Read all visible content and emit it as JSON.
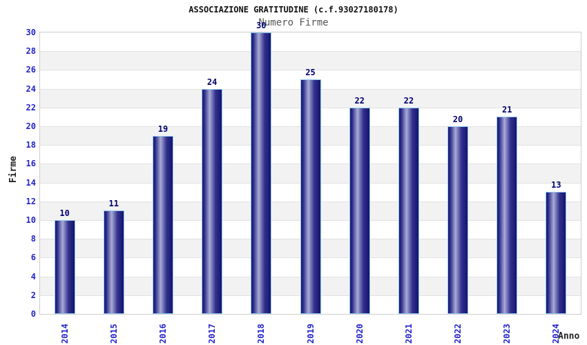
{
  "chart_data": {
    "type": "bar",
    "title": "ASSOCIAZIONE GRATITUDINE (c.f.93027180178)",
    "subtitle": "Numero Firme",
    "xlabel": "Anno",
    "ylabel": "Firme",
    "categories": [
      "2014",
      "2015",
      "2016",
      "2017",
      "2018",
      "2019",
      "2020",
      "2021",
      "2022",
      "2023",
      "2024"
    ],
    "values": [
      10,
      11,
      19,
      24,
      30,
      25,
      22,
      22,
      20,
      21,
      13
    ],
    "ylim": [
      0,
      30
    ],
    "ytick_step": 2,
    "grid": "alternating-horizontal-bands",
    "legend": "none",
    "colors": {
      "bar_dark": "#14146e",
      "bar_mid": "#32328e",
      "bar_light": "#a9abd6",
      "bar_border": "#8fc8f0",
      "tick_label": "#2424cc",
      "value_label": "#000070",
      "band_gray": "#f2f2f2",
      "gridline": "#e1e1e1",
      "plot_border": "#cccccc",
      "title": "#111111",
      "subtitle": "#555555",
      "axis_label": "#222222"
    }
  }
}
